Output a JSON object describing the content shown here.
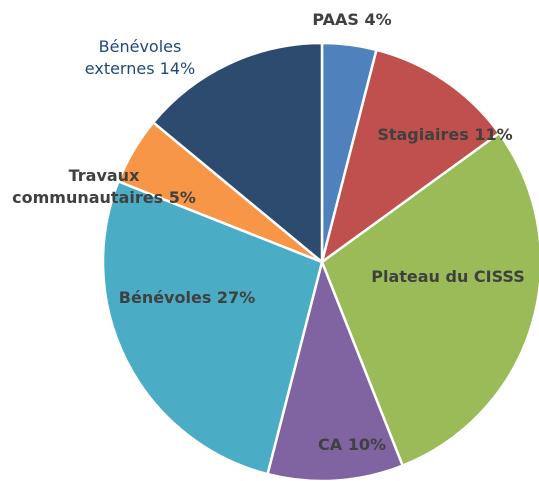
{
  "chart_data": {
    "type": "pie",
    "categories": [
      "PAAS",
      "Stagiaires",
      "Plateau du CISSS",
      "CA",
      "Bénévoles",
      "Travaux communautaires",
      "Bénévoles externes"
    ],
    "values": [
      4,
      11,
      29,
      10,
      27,
      5,
      14
    ],
    "value_labels": [
      "4%",
      "11%",
      null,
      "10%",
      "27%",
      "5%",
      "14%"
    ],
    "colors": [
      "#4f81bd",
      "#c0504d",
      "#9bbb59",
      "#8064a2",
      "#4bacc6",
      "#f79646",
      "#2d4a6f"
    ]
  }
}
